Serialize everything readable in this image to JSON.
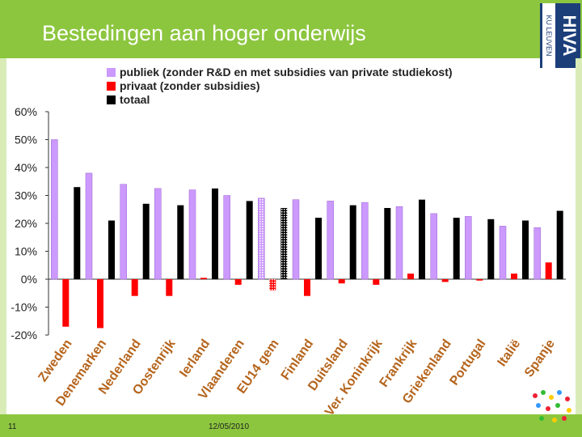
{
  "slide": {
    "title": "Bestedingen aan hoger onderwijs",
    "page_number": "11",
    "date": "12/05/2010",
    "logo_main": "HIVA",
    "logo_sub": "KU LEUVEN"
  },
  "colors": {
    "publiek": "#cc99ff",
    "privaat": "#ff0000",
    "totaal": "#000000",
    "brand_green": "#8cc63f"
  },
  "chart_data": {
    "type": "bar",
    "title": "",
    "xlabel": "",
    "ylabel": "",
    "ylim": [
      -20,
      60
    ],
    "yticks": [
      60,
      50,
      40,
      30,
      20,
      10,
      0,
      -10,
      -20
    ],
    "ytick_labels": [
      "60%",
      "50%",
      "40%",
      "30%",
      "20%",
      "10%",
      "0%",
      "-10%",
      "-20%"
    ],
    "grid": false,
    "legend_position": "top",
    "categories": [
      "Zweden",
      "Denemarken",
      "Nederland",
      "Oostenrijk",
      "Ierland",
      "Vlaanderen",
      "EU14 gem",
      "Finland",
      "Duitsland",
      "Ver. Koninkrijk",
      "Frankrijk",
      "Griekenland",
      "Portugal",
      "Italië",
      "Spanje"
    ],
    "hatched_categories": [
      "EU14 gem"
    ],
    "series": [
      {
        "name": "publiek (zonder R&D en met subsidies van private studiekost)",
        "color_key": "publiek",
        "values": [
          50,
          38,
          34,
          32.5,
          32,
          30,
          29,
          28.5,
          28,
          27.5,
          26,
          23.5,
          22.5,
          19,
          18.5
        ]
      },
      {
        "name": "privaat (zonder subsidies)",
        "color_key": "privaat",
        "values": [
          -17,
          -17.5,
          -6,
          -6,
          0.5,
          -2,
          -4,
          -6,
          -1.5,
          -2,
          2,
          -1,
          -0.5,
          2,
          6
        ]
      },
      {
        "name": "totaal",
        "color_key": "totaal",
        "values": [
          33,
          21,
          27,
          26.5,
          32.5,
          28,
          25.5,
          22,
          26.5,
          25.5,
          28.5,
          22,
          21.5,
          21,
          24.5
        ]
      }
    ]
  }
}
